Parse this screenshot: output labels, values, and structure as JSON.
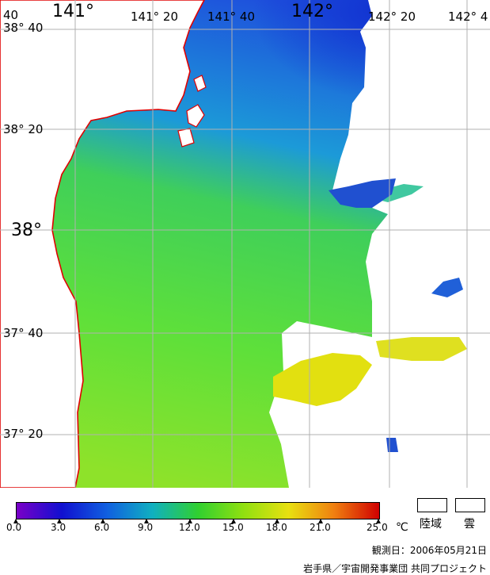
{
  "map": {
    "lon_labels": {
      "l1": "141°",
      "l2": "141° 20",
      "l3": "141° 40",
      "l4": "142°",
      "l5": "142° 20",
      "l6": "142° 4"
    },
    "lat_labels": {
      "a0": "40",
      "a1": "38° 40",
      "a2": "38° 20",
      "a3": "38°",
      "a4": "37° 40",
      "a5": "37° 20"
    },
    "colors": {
      "land": "#ffffff",
      "coast": "#e00000",
      "grid": "#b0b0b0"
    }
  },
  "colorbar": {
    "ticks": [
      "0.0",
      "3.0",
      "6.0",
      "9.0",
      "12.0",
      "15.0",
      "18.0",
      "21.0",
      "25.0"
    ],
    "unit": "℃",
    "gradient": [
      "#7a00c8",
      "#1010d0",
      "#1060e0",
      "#10b0c0",
      "#30d030",
      "#90e010",
      "#e8e010",
      "#f08010",
      "#d00000"
    ]
  },
  "legend": {
    "land": "陸域",
    "cloud": "雲"
  },
  "observation": "観測日：2006年05月21日",
  "credit": "岩手県／宇宙開発事業団 共同プロジェクト"
}
